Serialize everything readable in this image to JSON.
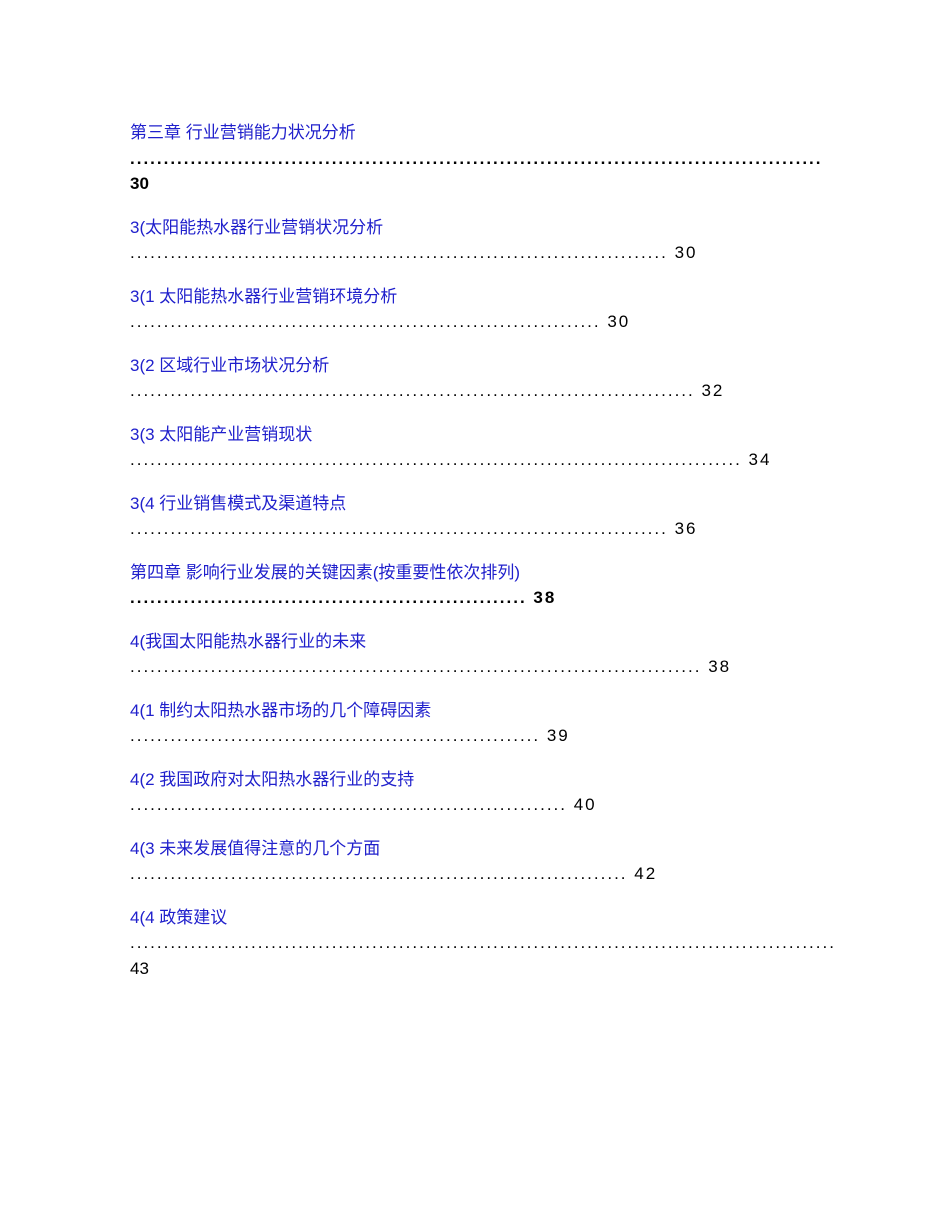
{
  "entries": [
    {
      "title": "第三章 行业营销能力状况分析",
      "dots": ".......................................................................................................",
      "page": "30",
      "bold": true,
      "split_page": true
    },
    {
      "title": "3(太阳能热水器行业营销状况分析",
      "dots": "................................................................................ 30",
      "bold": false
    },
    {
      "title": "3(1 太阳能热水器行业营销环境分析",
      "dots": "...................................................................... 30",
      "bold": false
    },
    {
      "title": "3(2 区域行业市场状况分析",
      "dots": ".................................................................................... 32",
      "bold": false
    },
    {
      "title": "3(3 太阳能产业营销现状",
      "dots": "........................................................................................... 34",
      "bold": false
    },
    {
      "title": "3(4 行业销售模式及渠道特点",
      "dots": "................................................................................ 36",
      "bold": false
    },
    {
      "title": "第四章 影响行业发展的关键因素(按重要性依次排列)",
      "dots": " ........................................................... 38",
      "bold": true
    },
    {
      "title": "4(我国太阳能热水器行业的未来",
      "dots": "..................................................................................... 38",
      "bold": false
    },
    {
      "title": "4(1 制约太阳热水器市场的几个障碍因素",
      "dots": "............................................................. 39",
      "bold": false
    },
    {
      "title": "4(2 我国政府对太阳热水器行业的支持",
      "dots": "................................................................. 40",
      "bold": false
    },
    {
      "title": "4(3 未来发展值得注意的几个方面",
      "dots": ".......................................................................... 42",
      "bold": false
    },
    {
      "title": "4(4 政策建议",
      "dots": "................................................................................................................",
      "page": "43",
      "bold": false,
      "split_page": true
    }
  ],
  "colors": {
    "title_color": "#2020cc",
    "text_color": "#000000",
    "background": "#ffffff"
  },
  "typography": {
    "font_size": 17,
    "font_family": "Microsoft YaHei"
  }
}
